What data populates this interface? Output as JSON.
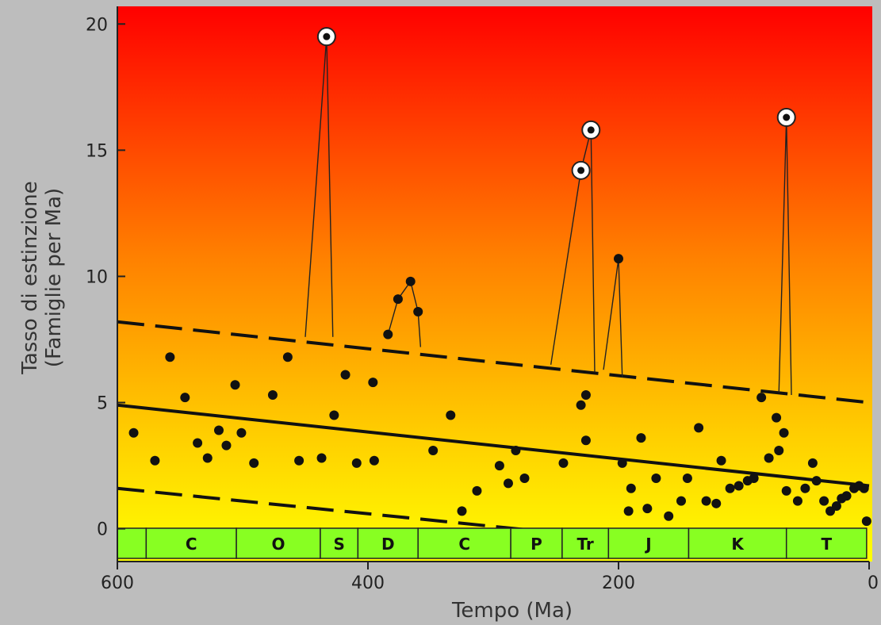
{
  "chart_data": {
    "type": "scatter",
    "xlabel": "Tempo (Ma)",
    "ylabel_line1": "Tasso di estinzione",
    "ylabel_line2": "(Famiglie per Ma)",
    "xlim": [
      600,
      0
    ],
    "ylim": [
      -1.3,
      20.7
    ],
    "x_ticks": [
      600,
      400,
      200,
      0
    ],
    "y_ticks": [
      0,
      5,
      10,
      15,
      20
    ],
    "x_tick_labels": [
      "600",
      "400",
      "200",
      "0"
    ],
    "y_tick_labels": [
      "0",
      "5",
      "10",
      "15",
      "20"
    ],
    "background_gradient": [
      "#ff0000",
      "#ff8000",
      "#ffd000",
      "#ffff00"
    ],
    "points": [
      {
        "x": 587,
        "y": 3.8
      },
      {
        "x": 570,
        "y": 2.7
      },
      {
        "x": 558,
        "y": 6.8
      },
      {
        "x": 546,
        "y": 5.2
      },
      {
        "x": 536,
        "y": 3.4
      },
      {
        "x": 528,
        "y": 2.8
      },
      {
        "x": 519,
        "y": 3.9
      },
      {
        "x": 513,
        "y": 3.3
      },
      {
        "x": 506,
        "y": 5.7
      },
      {
        "x": 501,
        "y": 3.8
      },
      {
        "x": 491,
        "y": 2.6
      },
      {
        "x": 476,
        "y": 5.3
      },
      {
        "x": 464,
        "y": 6.8
      },
      {
        "x": 455,
        "y": 2.7
      },
      {
        "x": 437,
        "y": 2.8
      },
      {
        "x": 427,
        "y": 4.5
      },
      {
        "x": 418,
        "y": 6.1
      },
      {
        "x": 409,
        "y": 2.6
      },
      {
        "x": 396,
        "y": 5.8
      },
      {
        "x": 395,
        "y": 2.7
      },
      {
        "x": 384,
        "y": 7.7
      },
      {
        "x": 376,
        "y": 9.1
      },
      {
        "x": 366,
        "y": 9.8
      },
      {
        "x": 360,
        "y": 8.6
      },
      {
        "x": 348,
        "y": 3.1
      },
      {
        "x": 334,
        "y": 4.5
      },
      {
        "x": 325,
        "y": 0.7
      },
      {
        "x": 313,
        "y": 1.5
      },
      {
        "x": 295,
        "y": 2.5
      },
      {
        "x": 288,
        "y": 1.8
      },
      {
        "x": 282,
        "y": 3.1
      },
      {
        "x": 275,
        "y": 2.0
      },
      {
        "x": 244,
        "y": 2.6
      },
      {
        "x": 230,
        "y": 4.9
      },
      {
        "x": 226,
        "y": 5.3
      },
      {
        "x": 226,
        "y": 3.5
      },
      {
        "x": 200,
        "y": 10.7
      },
      {
        "x": 197,
        "y": 2.6
      },
      {
        "x": 192,
        "y": 0.7
      },
      {
        "x": 190,
        "y": 1.6
      },
      {
        "x": 182,
        "y": 3.6
      },
      {
        "x": 177,
        "y": 0.8
      },
      {
        "x": 170,
        "y": 2.0
      },
      {
        "x": 160,
        "y": 0.5
      },
      {
        "x": 150,
        "y": 1.1
      },
      {
        "x": 145,
        "y": 2.0
      },
      {
        "x": 136,
        "y": 4.0
      },
      {
        "x": 130,
        "y": 1.1
      },
      {
        "x": 122,
        "y": 1.0
      },
      {
        "x": 118,
        "y": 2.7
      },
      {
        "x": 111,
        "y": 1.6
      },
      {
        "x": 104,
        "y": 1.7
      },
      {
        "x": 97,
        "y": 1.9
      },
      {
        "x": 92,
        "y": 2.0
      },
      {
        "x": 86,
        "y": 5.2
      },
      {
        "x": 80,
        "y": 2.8
      },
      {
        "x": 74,
        "y": 4.4
      },
      {
        "x": 72,
        "y": 3.1
      },
      {
        "x": 68,
        "y": 3.8
      },
      {
        "x": 66,
        "y": 1.5
      },
      {
        "x": 57,
        "y": 1.1
      },
      {
        "x": 51,
        "y": 1.6
      },
      {
        "x": 45,
        "y": 2.6
      },
      {
        "x": 42,
        "y": 1.9
      },
      {
        "x": 36,
        "y": 1.1
      },
      {
        "x": 31,
        "y": 0.7
      },
      {
        "x": 26,
        "y": 0.9
      },
      {
        "x": 22,
        "y": 1.2
      },
      {
        "x": 18,
        "y": 1.3
      },
      {
        "x": 12,
        "y": 1.6
      },
      {
        "x": 8,
        "y": 1.7
      },
      {
        "x": 4,
        "y": 1.6
      },
      {
        "x": 2,
        "y": 0.3
      }
    ],
    "major_extinctions": [
      {
        "x": 433,
        "y": 19.5
      },
      {
        "x": 230,
        "y": 14.2
      },
      {
        "x": 222,
        "y": 15.8
      },
      {
        "x": 66,
        "y": 16.3
      }
    ],
    "spike_lines": [
      [
        [
          450,
          7.6
        ],
        [
          433,
          19.5
        ],
        [
          428,
          7.6
        ]
      ],
      [
        [
          384,
          7.7
        ],
        [
          376,
          9.1
        ],
        [
          366,
          9.8
        ],
        [
          360,
          8.6
        ],
        [
          358,
          7.2
        ]
      ],
      [
        [
          254,
          6.5
        ],
        [
          230,
          14.2
        ],
        [
          222,
          15.8
        ],
        [
          219,
          6.2
        ]
      ],
      [
        [
          212,
          6.3
        ],
        [
          200,
          10.7
        ],
        [
          197,
          6.0
        ]
      ],
      [
        [
          72,
          5.4
        ],
        [
          66,
          16.3
        ],
        [
          62,
          5.3
        ]
      ]
    ],
    "trend_line": {
      "x": [
        600,
        0
      ],
      "y": [
        4.9,
        1.7
      ]
    },
    "upper_band": {
      "x": [
        600,
        0
      ],
      "y": [
        8.2,
        5.0
      ]
    },
    "lower_band": {
      "x": [
        600,
        262
      ],
      "y": [
        1.6,
        -0.1
      ]
    },
    "periods": [
      {
        "label": "",
        "start": 600,
        "end": 577
      },
      {
        "label": "C",
        "start": 577,
        "end": 505
      },
      {
        "label": "O",
        "start": 505,
        "end": 438
      },
      {
        "label": "S",
        "start": 438,
        "end": 408
      },
      {
        "label": "D",
        "start": 408,
        "end": 360
      },
      {
        "label": "C",
        "start": 360,
        "end": 286
      },
      {
        "label": "P",
        "start": 286,
        "end": 245
      },
      {
        "label": "Tr",
        "start": 245,
        "end": 208
      },
      {
        "label": "J",
        "start": 208,
        "end": 144
      },
      {
        "label": "K",
        "start": 144,
        "end": 66
      },
      {
        "label": "T",
        "start": 66,
        "end": 2
      }
    ],
    "period_bar_color": "#88ff22",
    "period_bar_border": "#222222"
  }
}
